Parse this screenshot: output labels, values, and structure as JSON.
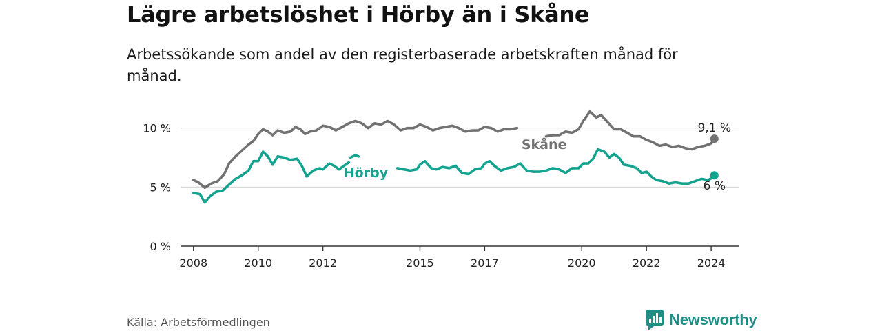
{
  "title": "Lägre arbetslöshet i Hörby än i Skåne",
  "subtitle": "Arbetssökande som andel av den registerbaserade arbetskraften månad för månad.",
  "source": "Källa: Arbetsförmedlingen",
  "brand": {
    "name": "Newsworthy",
    "icon": "newsworthy-logo-icon",
    "color": "#1f8f86"
  },
  "colors": {
    "skane": "#727272",
    "horby": "#14a38f"
  },
  "chart_data": {
    "type": "line",
    "title": "Lägre arbetslöshet i Hörby än i Skåne",
    "xlabel": "",
    "ylabel": "",
    "xlim": [
      2007.6,
      2024.85
    ],
    "ylim": [
      0,
      11.5
    ],
    "grid": true,
    "x_ticks": [
      2008,
      2010,
      2012,
      2015,
      2017,
      2020,
      2022,
      2024
    ],
    "x_tick_labels": [
      "2008",
      "2010",
      "2012",
      "2015",
      "2017",
      "2020",
      "2022",
      "2024"
    ],
    "y_ticks": [
      0,
      5,
      10
    ],
    "y_tick_labels": [
      "0 %",
      "5 %",
      "10 %"
    ],
    "series": [
      {
        "name": "Skåne",
        "color": "#727272",
        "end_label": "9,1 %",
        "points": [
          [
            2008.0,
            5.6
          ],
          [
            2008.15,
            5.4
          ],
          [
            2008.35,
            4.95
          ],
          [
            2008.55,
            5.3
          ],
          [
            2008.75,
            5.5
          ],
          [
            2008.95,
            6.1
          ],
          [
            2009.1,
            7.0
          ],
          [
            2009.3,
            7.6
          ],
          [
            2009.5,
            8.1
          ],
          [
            2009.7,
            8.6
          ],
          [
            2009.85,
            8.9
          ],
          [
            2010.0,
            9.5
          ],
          [
            2010.15,
            9.9
          ],
          [
            2010.3,
            9.7
          ],
          [
            2010.45,
            9.4
          ],
          [
            2010.6,
            9.8
          ],
          [
            2010.8,
            9.6
          ],
          [
            2011.0,
            9.7
          ],
          [
            2011.15,
            10.1
          ],
          [
            2011.3,
            9.9
          ],
          [
            2011.45,
            9.5
          ],
          [
            2011.6,
            9.7
          ],
          [
            2011.8,
            9.8
          ],
          [
            2012.0,
            10.2
          ],
          [
            2012.2,
            10.1
          ],
          [
            2012.4,
            9.8
          ],
          [
            2012.6,
            10.1
          ],
          [
            2012.8,
            10.4
          ],
          [
            2013.0,
            10.6
          ],
          [
            2013.2,
            10.4
          ],
          [
            2013.4,
            10.0
          ],
          [
            2013.6,
            10.4
          ],
          [
            2013.8,
            10.3
          ],
          [
            2014.0,
            10.6
          ],
          [
            2014.2,
            10.3
          ],
          [
            2014.4,
            9.8
          ],
          [
            2014.6,
            10.0
          ],
          [
            2014.8,
            10.0
          ],
          [
            2015.0,
            10.3
          ],
          [
            2015.2,
            10.1
          ],
          [
            2015.4,
            9.8
          ],
          [
            2015.6,
            10.0
          ],
          [
            2015.8,
            10.1
          ],
          [
            2016.0,
            10.2
          ],
          [
            2016.2,
            10.0
          ],
          [
            2016.4,
            9.7
          ],
          [
            2016.6,
            9.8
          ],
          [
            2016.8,
            9.8
          ],
          [
            2017.0,
            10.1
          ],
          [
            2017.2,
            10.0
          ],
          [
            2017.4,
            9.7
          ],
          [
            2017.6,
            9.9
          ],
          [
            2017.8,
            9.9
          ],
          [
            2018.0,
            10.0
          ],
          null,
          [
            2018.9,
            9.3
          ],
          [
            2019.1,
            9.4
          ],
          [
            2019.3,
            9.4
          ],
          [
            2019.5,
            9.7
          ],
          [
            2019.7,
            9.6
          ],
          [
            2019.9,
            9.9
          ],
          [
            2020.05,
            10.6
          ],
          [
            2020.25,
            11.4
          ],
          [
            2020.45,
            10.9
          ],
          [
            2020.6,
            11.1
          ],
          [
            2020.8,
            10.5
          ],
          [
            2021.0,
            9.9
          ],
          [
            2021.2,
            9.9
          ],
          [
            2021.4,
            9.6
          ],
          [
            2021.6,
            9.3
          ],
          [
            2021.8,
            9.3
          ],
          [
            2022.0,
            9.0
          ],
          [
            2022.2,
            8.8
          ],
          [
            2022.4,
            8.5
          ],
          [
            2022.6,
            8.6
          ],
          [
            2022.8,
            8.4
          ],
          [
            2023.0,
            8.5
          ],
          [
            2023.2,
            8.3
          ],
          [
            2023.4,
            8.2
          ],
          [
            2023.6,
            8.4
          ],
          [
            2023.8,
            8.5
          ],
          [
            2024.0,
            8.7
          ],
          [
            2024.1,
            9.1
          ]
        ]
      },
      {
        "name": "Hörby",
        "color": "#14a38f",
        "end_label": "6 %",
        "points": [
          [
            2008.0,
            4.5
          ],
          [
            2008.2,
            4.4
          ],
          [
            2008.35,
            3.7
          ],
          [
            2008.5,
            4.2
          ],
          [
            2008.7,
            4.6
          ],
          [
            2008.9,
            4.7
          ],
          [
            2009.1,
            5.2
          ],
          [
            2009.3,
            5.7
          ],
          [
            2009.5,
            6.0
          ],
          [
            2009.7,
            6.4
          ],
          [
            2009.85,
            7.2
          ],
          [
            2010.0,
            7.2
          ],
          [
            2010.15,
            8.0
          ],
          [
            2010.3,
            7.6
          ],
          [
            2010.45,
            6.9
          ],
          [
            2010.6,
            7.6
          ],
          [
            2010.8,
            7.5
          ],
          [
            2011.0,
            7.3
          ],
          [
            2011.2,
            7.4
          ],
          [
            2011.35,
            6.8
          ],
          [
            2011.5,
            5.9
          ],
          [
            2011.7,
            6.4
          ],
          [
            2011.9,
            6.6
          ],
          [
            2012.0,
            6.5
          ],
          [
            2012.2,
            7.0
          ],
          [
            2012.35,
            6.8
          ],
          [
            2012.5,
            6.5
          ],
          [
            2012.6,
            6.7
          ],
          [
            2012.8,
            7.1
          ],
          null,
          [
            2012.85,
            7.5
          ],
          [
            2013.0,
            7.7
          ],
          [
            2013.1,
            7.6
          ],
          null,
          [
            2014.3,
            6.6
          ],
          [
            2014.5,
            6.5
          ],
          [
            2014.7,
            6.4
          ],
          [
            2014.9,
            6.5
          ],
          [
            2015.0,
            6.9
          ],
          [
            2015.15,
            7.2
          ],
          [
            2015.35,
            6.6
          ],
          [
            2015.5,
            6.5
          ],
          [
            2015.7,
            6.7
          ],
          [
            2015.9,
            6.6
          ],
          [
            2016.1,
            6.8
          ],
          [
            2016.3,
            6.2
          ],
          [
            2016.5,
            6.1
          ],
          [
            2016.7,
            6.5
          ],
          [
            2016.9,
            6.6
          ],
          [
            2017.0,
            7.0
          ],
          [
            2017.15,
            7.2
          ],
          [
            2017.3,
            6.8
          ],
          [
            2017.5,
            6.4
          ],
          [
            2017.7,
            6.6
          ],
          [
            2017.9,
            6.7
          ],
          [
            2018.1,
            7.0
          ],
          [
            2018.3,
            6.4
          ],
          [
            2018.5,
            6.3
          ],
          [
            2018.7,
            6.3
          ],
          [
            2018.9,
            6.4
          ],
          [
            2019.1,
            6.6
          ],
          [
            2019.3,
            6.5
          ],
          [
            2019.5,
            6.2
          ],
          [
            2019.7,
            6.6
          ],
          [
            2019.9,
            6.6
          ],
          [
            2020.05,
            7.0
          ],
          [
            2020.2,
            7.0
          ],
          [
            2020.35,
            7.4
          ],
          [
            2020.5,
            8.2
          ],
          [
            2020.7,
            8.0
          ],
          [
            2020.85,
            7.5
          ],
          [
            2021.0,
            7.8
          ],
          [
            2021.15,
            7.5
          ],
          [
            2021.3,
            6.9
          ],
          [
            2021.5,
            6.8
          ],
          [
            2021.7,
            6.6
          ],
          [
            2021.85,
            6.2
          ],
          [
            2022.0,
            6.3
          ],
          [
            2022.15,
            5.9
          ],
          [
            2022.3,
            5.6
          ],
          [
            2022.5,
            5.5
          ],
          [
            2022.7,
            5.3
          ],
          [
            2022.9,
            5.4
          ],
          [
            2023.1,
            5.3
          ],
          [
            2023.3,
            5.3
          ],
          [
            2023.5,
            5.5
          ],
          [
            2023.7,
            5.7
          ],
          [
            2023.9,
            5.6
          ],
          [
            2024.05,
            5.8
          ],
          [
            2024.1,
            6.0
          ]
        ]
      }
    ]
  }
}
